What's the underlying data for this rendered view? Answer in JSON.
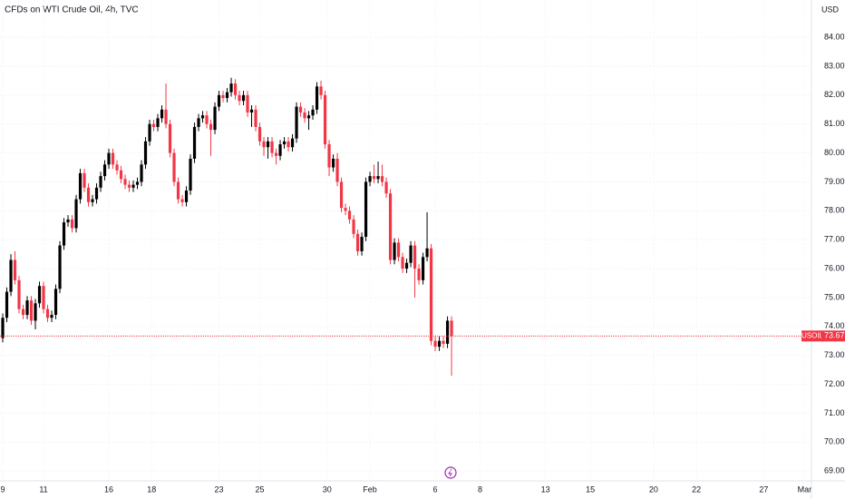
{
  "chart_data": {
    "type": "candlestick",
    "title": "CFDs on WTI Crude Oil, 4h, TVC",
    "currency": "USD",
    "symbol": "USOIL",
    "current_price": 73.67,
    "up_color": "#000000",
    "down_color": "#f23645",
    "xlim": [
      -0.67,
      198.2
    ],
    "xticks": [
      {
        "value": 0,
        "label": "9"
      },
      {
        "value": 10,
        "label": "11"
      },
      {
        "value": 26,
        "label": "16"
      },
      {
        "value": 36.5,
        "label": "18"
      },
      {
        "value": 53,
        "label": "23"
      },
      {
        "value": 63,
        "label": "25"
      },
      {
        "value": 79.5,
        "label": "30"
      },
      {
        "value": 90,
        "label": "Feb"
      },
      {
        "value": 106,
        "label": "6"
      },
      {
        "value": 117,
        "label": "8"
      },
      {
        "value": 133,
        "label": "13"
      },
      {
        "value": 144,
        "label": "15"
      },
      {
        "value": 159.5,
        "label": "20"
      },
      {
        "value": 170,
        "label": "22"
      },
      {
        "value": 186.5,
        "label": "27"
      },
      {
        "value": 196.5,
        "label": "Mar"
      }
    ],
    "ylim": [
      68.66,
      85.29
    ],
    "yticks": [
      {
        "value": 69,
        "label": "69.00"
      },
      {
        "value": 70,
        "label": "70.00"
      },
      {
        "value": 71,
        "label": "71.00"
      },
      {
        "value": 72,
        "label": "72.00"
      },
      {
        "value": 73,
        "label": "73.00"
      },
      {
        "value": 74,
        "label": "74.00"
      },
      {
        "value": 75,
        "label": "75.00"
      },
      {
        "value": 76,
        "label": "76.00"
      },
      {
        "value": 77,
        "label": "77.00"
      },
      {
        "value": 78,
        "label": "78.00"
      },
      {
        "value": 79,
        "label": "79.00"
      },
      {
        "value": 80,
        "label": "80.00"
      },
      {
        "value": 81,
        "label": "81.00"
      },
      {
        "value": 82,
        "label": "82.00"
      },
      {
        "value": 83,
        "label": "83.00"
      },
      {
        "value": 84,
        "label": "84.00"
      }
    ],
    "grid": true,
    "ohlc": [
      [
        73.6,
        74.45,
        73.45,
        74.3
      ],
      [
        74.3,
        75.35,
        74.15,
        75.2
      ],
      [
        75.2,
        76.5,
        75.05,
        76.3
      ],
      [
        76.3,
        76.6,
        75.45,
        75.6
      ],
      [
        75.6,
        75.75,
        74.45,
        74.6
      ],
      [
        74.6,
        74.75,
        74.25,
        74.4
      ],
      [
        74.4,
        75.05,
        74.25,
        74.9
      ],
      [
        74.9,
        75.05,
        74.05,
        74.2
      ],
      [
        74.2,
        74.95,
        73.9,
        74.8
      ],
      [
        74.8,
        75.55,
        74.65,
        75.4
      ],
      [
        75.4,
        75.55,
        74.45,
        74.6
      ],
      [
        74.6,
        74.75,
        74.15,
        74.3
      ],
      [
        74.3,
        74.55,
        74.15,
        74.4
      ],
      [
        74.4,
        75.45,
        74.25,
        75.3
      ],
      [
        75.3,
        76.95,
        75.15,
        76.8
      ],
      [
        76.8,
        77.75,
        76.65,
        77.6
      ],
      [
        77.6,
        77.85,
        77.45,
        77.7
      ],
      [
        77.7,
        77.85,
        77.25,
        77.4
      ],
      [
        77.4,
        78.55,
        77.25,
        78.4
      ],
      [
        78.4,
        79.45,
        78.25,
        79.3
      ],
      [
        79.3,
        79.45,
        78.65,
        78.8
      ],
      [
        78.8,
        78.95,
        78.15,
        78.3
      ],
      [
        78.3,
        78.55,
        78.15,
        78.4
      ],
      [
        78.4,
        78.95,
        78.25,
        78.8
      ],
      [
        78.8,
        79.35,
        78.65,
        79.2
      ],
      [
        79.2,
        79.75,
        79.05,
        79.6
      ],
      [
        79.6,
        80.15,
        79.45,
        80.0
      ],
      [
        80.0,
        80.15,
        79.45,
        79.6
      ],
      [
        79.6,
        79.75,
        79.25,
        79.4
      ],
      [
        79.4,
        79.55,
        78.95,
        79.1
      ],
      [
        79.1,
        79.25,
        78.75,
        78.9
      ],
      [
        78.9,
        79.05,
        78.65,
        78.8
      ],
      [
        78.8,
        79.05,
        78.65,
        78.9
      ],
      [
        78.9,
        79.15,
        78.75,
        79.0
      ],
      [
        79.0,
        79.75,
        78.85,
        79.6
      ],
      [
        79.6,
        80.55,
        79.45,
        80.4
      ],
      [
        80.4,
        81.15,
        80.25,
        81.0
      ],
      [
        81.0,
        81.15,
        80.75,
        80.9
      ],
      [
        80.9,
        81.35,
        80.75,
        81.2
      ],
      [
        81.2,
        81.65,
        81.05,
        81.5
      ],
      [
        81.5,
        82.4,
        80.85,
        81.0
      ],
      [
        81.0,
        81.15,
        79.85,
        80.0
      ],
      [
        80.0,
        80.15,
        78.85,
        79.0
      ],
      [
        79.0,
        79.15,
        78.25,
        78.4
      ],
      [
        78.4,
        78.55,
        78.15,
        78.3
      ],
      [
        78.3,
        78.85,
        78.15,
        78.7
      ],
      [
        78.7,
        79.95,
        78.55,
        79.8
      ],
      [
        79.8,
        81.05,
        79.65,
        80.9
      ],
      [
        80.9,
        81.35,
        80.75,
        81.2
      ],
      [
        81.2,
        81.45,
        81.05,
        81.3
      ],
      [
        81.3,
        81.45,
        80.85,
        81.0
      ],
      [
        81.0,
        81.15,
        79.9,
        80.8
      ],
      [
        80.8,
        81.75,
        80.65,
        81.6
      ],
      [
        81.6,
        82.15,
        81.45,
        82.0
      ],
      [
        82.0,
        82.15,
        81.75,
        81.9
      ],
      [
        81.9,
        82.25,
        81.75,
        82.1
      ],
      [
        82.1,
        82.6,
        81.95,
        82.4
      ],
      [
        82.4,
        82.55,
        81.85,
        82.0
      ],
      [
        82.0,
        82.15,
        81.65,
        81.8
      ],
      [
        81.8,
        82.15,
        81.65,
        82.0
      ],
      [
        82.0,
        82.15,
        81.25,
        81.4
      ],
      [
        81.4,
        81.65,
        80.9,
        81.5
      ],
      [
        81.5,
        81.65,
        80.75,
        80.9
      ],
      [
        80.9,
        81.05,
        80.25,
        80.4
      ],
      [
        80.4,
        80.55,
        79.9,
        80.2
      ],
      [
        80.2,
        80.55,
        79.8,
        80.4
      ],
      [
        80.4,
        80.55,
        79.85,
        80.0
      ],
      [
        80.0,
        80.15,
        79.6,
        79.9
      ],
      [
        79.9,
        80.45,
        79.75,
        80.3
      ],
      [
        80.3,
        80.55,
        80.15,
        80.4
      ],
      [
        80.4,
        80.55,
        80.05,
        80.2
      ],
      [
        80.2,
        80.65,
        80.05,
        80.5
      ],
      [
        80.5,
        81.75,
        80.35,
        81.6
      ],
      [
        81.6,
        81.75,
        81.25,
        81.4
      ],
      [
        81.4,
        81.55,
        81.05,
        81.2
      ],
      [
        81.2,
        81.45,
        80.8,
        81.3
      ],
      [
        81.3,
        81.65,
        81.15,
        81.5
      ],
      [
        81.5,
        82.45,
        81.35,
        82.3
      ],
      [
        82.3,
        82.5,
        81.85,
        82.0
      ],
      [
        82.0,
        82.15,
        80.15,
        80.3
      ],
      [
        80.3,
        80.45,
        79.2,
        79.5
      ],
      [
        79.5,
        79.95,
        79.35,
        79.8
      ],
      [
        79.8,
        80.0,
        78.85,
        79.0
      ],
      [
        79.0,
        79.15,
        77.95,
        78.1
      ],
      [
        78.1,
        78.25,
        77.85,
        78.0
      ],
      [
        78.0,
        78.15,
        77.55,
        77.7
      ],
      [
        77.7,
        77.85,
        77.05,
        77.2
      ],
      [
        77.2,
        77.35,
        76.45,
        76.6
      ],
      [
        76.6,
        77.25,
        76.45,
        77.1
      ],
      [
        77.1,
        79.15,
        76.95,
        79.0
      ],
      [
        79.0,
        79.35,
        78.85,
        79.2
      ],
      [
        79.2,
        79.6,
        78.95,
        79.1
      ],
      [
        79.1,
        79.7,
        78.95,
        79.2
      ],
      [
        79.2,
        79.6,
        78.85,
        79.0
      ],
      [
        79.0,
        79.15,
        78.45,
        78.6
      ],
      [
        78.6,
        78.75,
        76.15,
        76.3
      ],
      [
        76.3,
        77.05,
        76.15,
        76.9
      ],
      [
        76.9,
        77.05,
        76.25,
        76.4
      ],
      [
        76.4,
        76.55,
        75.85,
        76.0
      ],
      [
        76.0,
        76.35,
        75.85,
        76.2
      ],
      [
        76.2,
        76.95,
        76.05,
        76.8
      ],
      [
        76.8,
        76.95,
        75.0,
        76.0
      ],
      [
        76.0,
        76.15,
        75.45,
        75.6
      ],
      [
        75.6,
        76.55,
        75.45,
        76.4
      ],
      [
        76.4,
        77.95,
        76.25,
        76.7
      ],
      [
        76.7,
        76.85,
        73.35,
        73.5
      ],
      [
        73.5,
        73.65,
        73.15,
        73.3
      ],
      [
        73.3,
        73.65,
        73.15,
        73.5
      ],
      [
        73.5,
        73.65,
        73.25,
        73.4
      ],
      [
        73.4,
        74.35,
        73.25,
        74.2
      ],
      [
        74.2,
        74.35,
        72.3,
        73.67
      ]
    ]
  }
}
